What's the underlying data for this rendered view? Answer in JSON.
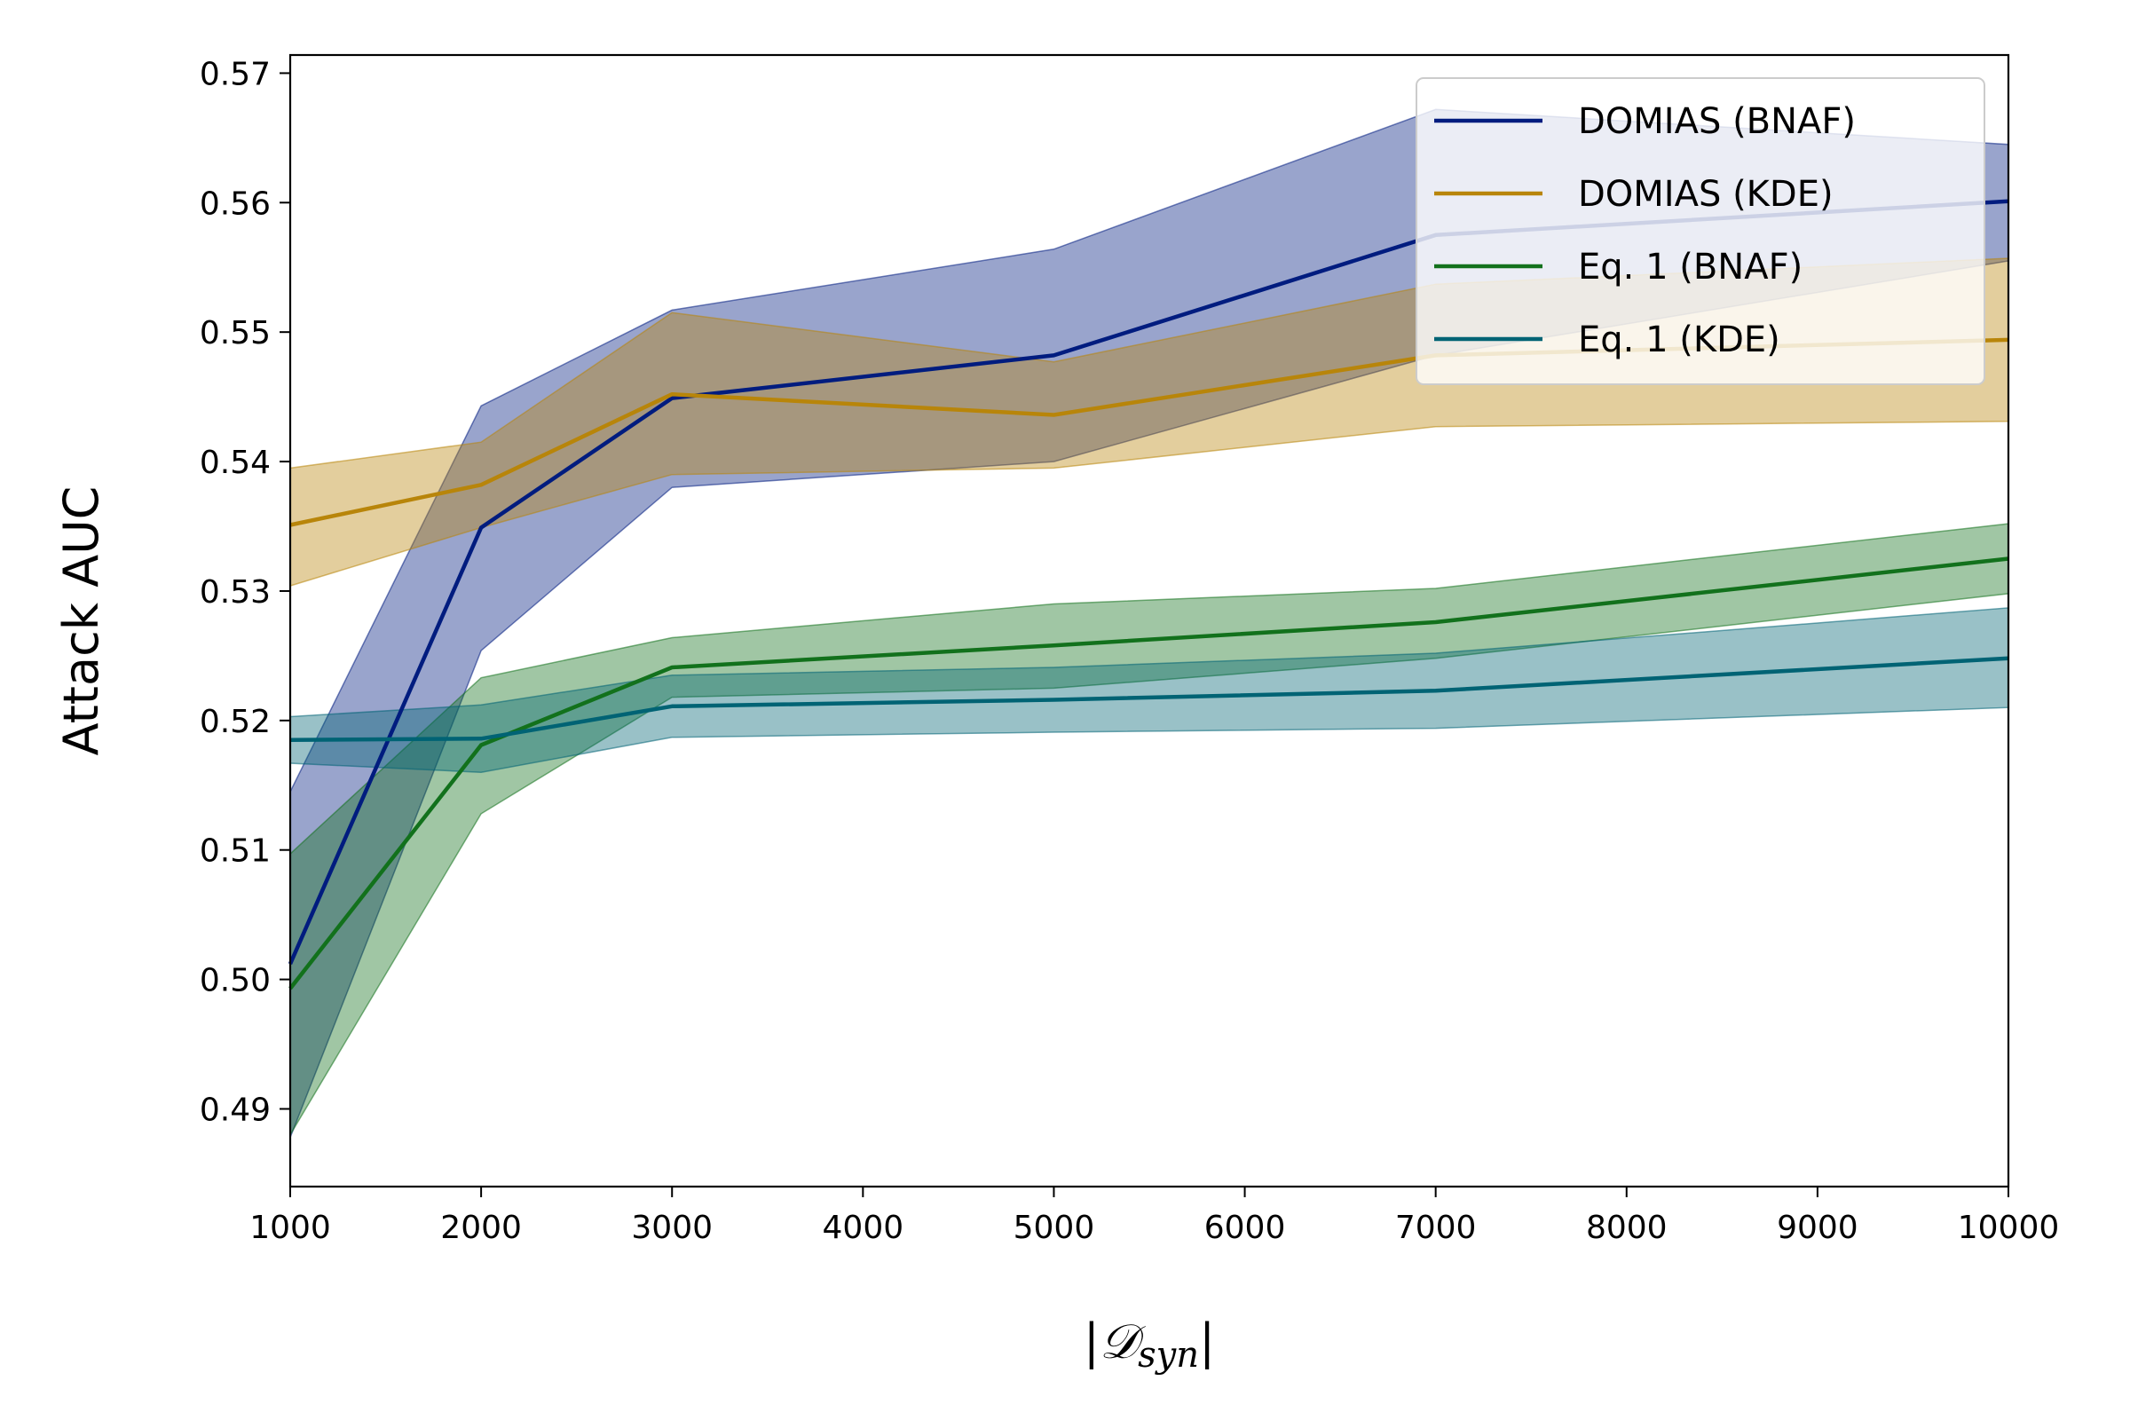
{
  "chart_data": {
    "type": "line",
    "xlabel": "|𝒟syn|",
    "xlabel_main": "𝒟",
    "xlabel_sub": "syn",
    "ylabel": "Attack AUC",
    "xlim": [
      1000,
      10000
    ],
    "ylim": [
      0.484,
      0.5714
    ],
    "xticks": [
      1000,
      2000,
      3000,
      4000,
      5000,
      6000,
      7000,
      8000,
      9000,
      10000
    ],
    "yticks": [
      0.49,
      0.5,
      0.51,
      0.52,
      0.53,
      0.54,
      0.55,
      0.56,
      0.57
    ],
    "ytick_labels": [
      "0.49",
      "0.50",
      "0.51",
      "0.52",
      "0.53",
      "0.54",
      "0.55",
      "0.56",
      "0.57"
    ],
    "grid": false,
    "legend_position": "top-right",
    "x": [
      1000,
      2000,
      3000,
      5000,
      7000,
      10000
    ],
    "series": [
      {
        "name": "DOMIAS (BNAF)",
        "color": "#001c7f",
        "values": [
          0.5012,
          0.5349,
          0.5449,
          0.5482,
          0.5575,
          0.5601
        ],
        "lower": [
          0.4878,
          0.5254,
          0.538,
          0.54,
          0.5482,
          0.5555
        ],
        "upper": [
          0.5145,
          0.5443,
          0.5517,
          0.5564,
          0.5672,
          0.5645
        ]
      },
      {
        "name": "DOMIAS (KDE)",
        "color": "#b8850a",
        "values": [
          0.5351,
          0.5382,
          0.5452,
          0.5436,
          0.5482,
          0.5494
        ],
        "lower": [
          0.5304,
          0.5349,
          0.539,
          0.5395,
          0.5427,
          0.5431
        ],
        "upper": [
          0.5395,
          0.5415,
          0.5515,
          0.5477,
          0.5537,
          0.5557
        ]
      },
      {
        "name": "Eq. 1 (BNAF)",
        "color": "#12711c",
        "values": [
          0.4993,
          0.5181,
          0.5241,
          0.5258,
          0.5276,
          0.5325
        ],
        "lower": [
          0.488,
          0.5128,
          0.5218,
          0.5225,
          0.5248,
          0.5298
        ],
        "upper": [
          0.5097,
          0.5233,
          0.5264,
          0.529,
          0.5302,
          0.5352
        ]
      },
      {
        "name": "Eq. 1 (KDE)",
        "color": "#006374",
        "values": [
          0.5185,
          0.5186,
          0.5211,
          0.5216,
          0.5223,
          0.5248
        ],
        "lower": [
          0.5167,
          0.516,
          0.5187,
          0.5191,
          0.5194,
          0.521
        ],
        "upper": [
          0.5203,
          0.5212,
          0.5235,
          0.5241,
          0.5252,
          0.5287
        ]
      }
    ]
  }
}
